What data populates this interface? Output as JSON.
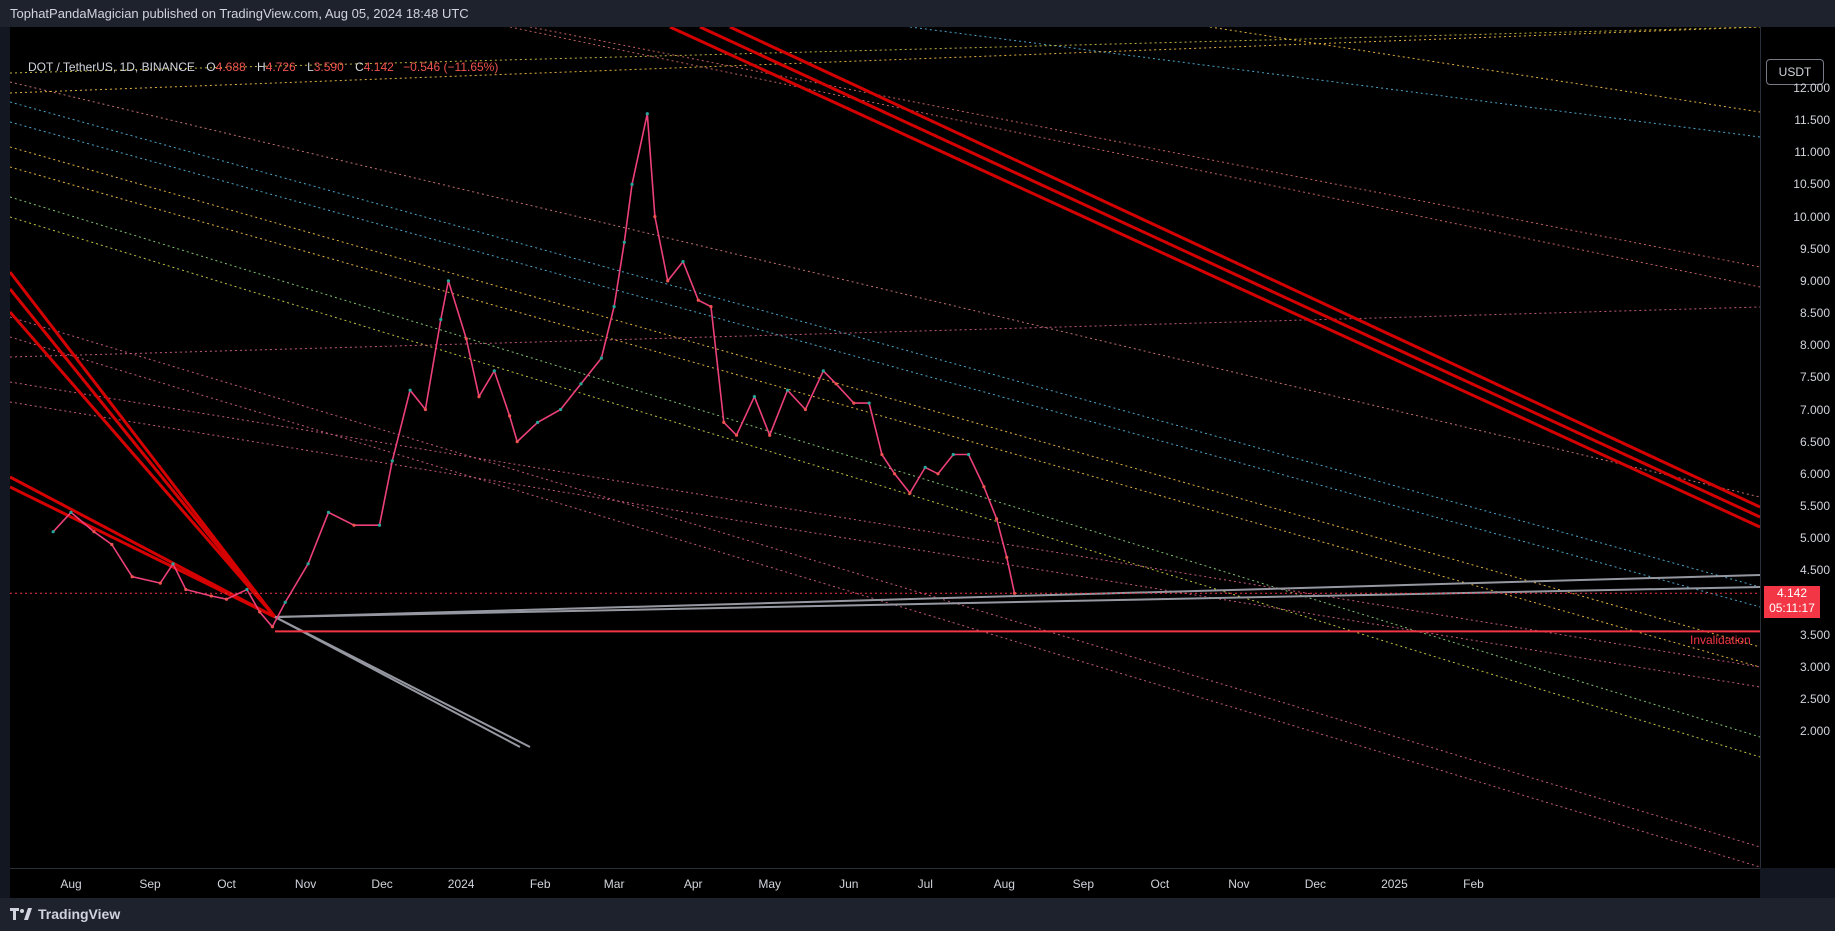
{
  "header": {
    "publisher_line": "TophatPandaMagician published on TradingView.com, Aug 05, 2024 18:48 UTC"
  },
  "legend": {
    "symbol": "DOT / TetherUS, 1D, BINANCE",
    "open_label": "O",
    "open": "4.688",
    "high_label": "H",
    "high": "4.726",
    "low_label": "L",
    "low": "3.590",
    "close_label": "C",
    "close": "4.142",
    "change": "−0.546 (−11.65%)"
  },
  "currency_button": "USDT",
  "current_price": {
    "value": "4.142",
    "countdown": "05:11:17"
  },
  "annotation": {
    "invalidation": "Invalidation"
  },
  "brand": {
    "name": "TradingView"
  },
  "colors": {
    "up": "#26a69a",
    "down": "#ef5350",
    "trendline": "#d50000",
    "invalidation": "#f23645",
    "support": "#9598a1"
  },
  "chart_data": {
    "type": "candlestick",
    "symbol": "DOT / TetherUS",
    "interval": "1D",
    "exchange": "BINANCE",
    "y_axis": {
      "unit": "USDT",
      "range": [
        1.6,
        12.9
      ],
      "ticks": [
        "12.000",
        "11.500",
        "11.000",
        "10.500",
        "10.000",
        "9.500",
        "9.000",
        "8.500",
        "8.000",
        "7.500",
        "7.000",
        "6.500",
        "6.000",
        "5.500",
        "5.000",
        "4.500",
        "3.500",
        "3.000",
        "2.500",
        "2.000"
      ]
    },
    "x_axis": {
      "ticks": [
        "Aug",
        "Sep",
        "Oct",
        "Nov",
        "Dec",
        "2024",
        "Feb",
        "Mar",
        "Apr",
        "May",
        "Jun",
        "Jul",
        "Aug",
        "Sep",
        "Oct",
        "Nov",
        "Dec",
        "2025",
        "Feb"
      ]
    },
    "price_path": [
      [
        "2023-07-25",
        5.1
      ],
      [
        "2023-08-01",
        5.4
      ],
      [
        "2023-08-10",
        5.1
      ],
      [
        "2023-08-17",
        4.9
      ],
      [
        "2023-08-25",
        4.4
      ],
      [
        "2023-09-05",
        4.3
      ],
      [
        "2023-09-10",
        4.6
      ],
      [
        "2023-09-15",
        4.2
      ],
      [
        "2023-09-25",
        4.1
      ],
      [
        "2023-10-01",
        4.05
      ],
      [
        "2023-10-09",
        4.2
      ],
      [
        "2023-10-14",
        3.85
      ],
      [
        "2023-10-19",
        3.62
      ],
      [
        "2023-10-24",
        4.0
      ],
      [
        "2023-11-02",
        4.6
      ],
      [
        "2023-11-10",
        5.4
      ],
      [
        "2023-11-20",
        5.2
      ],
      [
        "2023-11-30",
        5.2
      ],
      [
        "2023-12-05",
        6.2
      ],
      [
        "2023-12-12",
        7.3
      ],
      [
        "2023-12-18",
        7.0
      ],
      [
        "2023-12-24",
        8.4
      ],
      [
        "2023-12-27",
        9.0
      ],
      [
        "2024-01-03",
        8.1
      ],
      [
        "2024-01-08",
        7.2
      ],
      [
        "2024-01-14",
        7.6
      ],
      [
        "2024-01-20",
        6.9
      ],
      [
        "2024-01-23",
        6.5
      ],
      [
        "2024-01-31",
        6.8
      ],
      [
        "2024-02-09",
        7.0
      ],
      [
        "2024-02-17",
        7.4
      ],
      [
        "2024-02-25",
        7.8
      ],
      [
        "2024-03-01",
        8.6
      ],
      [
        "2024-03-05",
        9.6
      ],
      [
        "2024-03-08",
        10.5
      ],
      [
        "2024-03-14",
        11.6
      ],
      [
        "2024-03-17",
        10.0
      ],
      [
        "2024-03-22",
        9.0
      ],
      [
        "2024-03-28",
        9.3
      ],
      [
        "2024-04-03",
        8.7
      ],
      [
        "2024-04-08",
        8.6
      ],
      [
        "2024-04-13",
        6.8
      ],
      [
        "2024-04-18",
        6.6
      ],
      [
        "2024-04-25",
        7.2
      ],
      [
        "2024-05-01",
        6.6
      ],
      [
        "2024-05-08",
        7.3
      ],
      [
        "2024-05-15",
        7.0
      ],
      [
        "2024-05-22",
        7.6
      ],
      [
        "2024-05-27",
        7.4
      ],
      [
        "2024-06-03",
        7.1
      ],
      [
        "2024-06-09",
        7.1
      ],
      [
        "2024-06-14",
        6.3
      ],
      [
        "2024-06-19",
        6.0
      ],
      [
        "2024-06-25",
        5.7
      ],
      [
        "2024-07-01",
        6.1
      ],
      [
        "2024-07-06",
        6.0
      ],
      [
        "2024-07-12",
        6.3
      ],
      [
        "2024-07-18",
        6.3
      ],
      [
        "2024-07-24",
        5.8
      ],
      [
        "2024-07-29",
        5.3
      ],
      [
        "2024-08-02",
        4.7
      ],
      [
        "2024-08-05",
        4.142
      ]
    ],
    "horizontal_levels": [
      {
        "value": 3.55,
        "label": "Invalidation"
      },
      {
        "value": 4.142
      }
    ]
  }
}
